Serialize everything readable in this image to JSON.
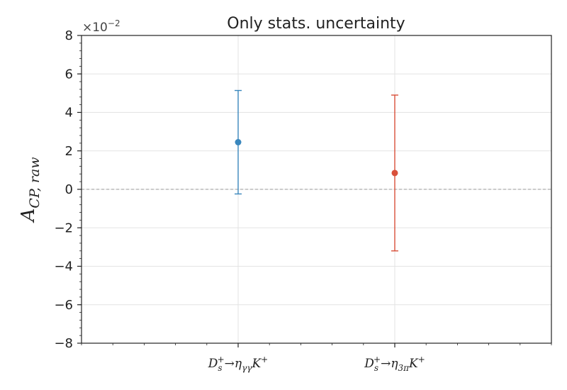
{
  "chart_data": {
    "type": "scatter",
    "title": "Only stats. uncertainty",
    "xlabel": "",
    "ylabel": {
      "base": "A",
      "sub": "CP, raw"
    },
    "y_scale_label": {
      "base": "×10",
      "exp": "−2"
    },
    "y_multiplier": 0.01,
    "ylim": [
      -8,
      8
    ],
    "yticks": [
      -8,
      -6,
      -4,
      -2,
      0,
      2,
      4,
      6,
      8
    ],
    "ytick_labels": [
      "−8",
      "−6",
      "−4",
      "−2",
      "0",
      "2",
      "4",
      "6",
      "8"
    ],
    "grid": true,
    "reference_line": {
      "y": 0,
      "style": "dashed",
      "color": "#999999"
    },
    "categories": [
      {
        "base": "D",
        "sup": "+",
        "sub": "s",
        "arrow": "→",
        "eta": "η",
        "eta_sub": "γγ",
        "tail": "K",
        "tail_sup": "+"
      },
      {
        "base": "D",
        "sup": "+",
        "sub": "s",
        "arrow": "→",
        "eta": "η",
        "eta_sub": "3π",
        "tail": "K",
        "tail_sup": "+"
      }
    ],
    "points": [
      {
        "category_index": 0,
        "y": 2.45,
        "err_low": 2.69,
        "err_high": 2.69,
        "color": "#3a87bd"
      },
      {
        "category_index": 1,
        "y": 0.85,
        "err_low": 4.05,
        "err_high": 4.05,
        "color": "#d9503a"
      }
    ]
  }
}
